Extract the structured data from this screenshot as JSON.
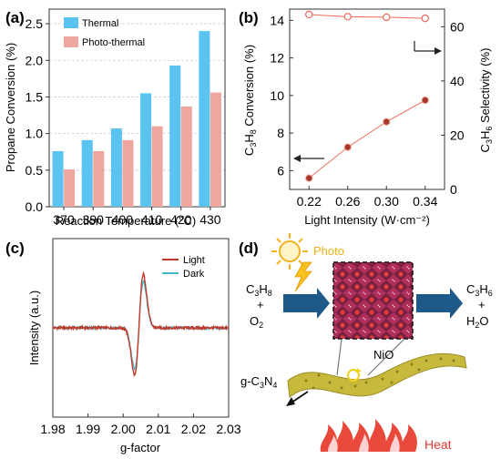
{
  "panels": {
    "a": {
      "tag": "(a)"
    },
    "b": {
      "tag": "(b)"
    },
    "c": {
      "tag": "(c)"
    },
    "d": {
      "tag": "(d)"
    }
  },
  "colors": {
    "thermal": "#5bc3f0",
    "photothermal": "#f0a6a0",
    "selectivity": "#e96a5c",
    "conversion": "#a8362c",
    "light": "#c0392b",
    "dark": "#3fb8c9",
    "arrow": "#1d5a8a"
  },
  "chart_data": [
    {
      "type": "bar",
      "panel": "a",
      "categories": [
        "370",
        "390",
        "400",
        "410",
        "420",
        "430"
      ],
      "series": [
        {
          "name": "Thermal",
          "values": [
            0.76,
            0.91,
            1.07,
            1.55,
            1.93,
            2.4
          ]
        },
        {
          "name": "Photo-thermal",
          "values": [
            0.51,
            0.76,
            0.91,
            1.1,
            1.37,
            1.56
          ]
        }
      ],
      "xlabel": "Reaction Temperature (°C)",
      "ylabel": "Propane Conversion (%)",
      "ylim": [
        0,
        2.7
      ],
      "yticks": [
        "0.0",
        "0.5",
        "1.0",
        "1.5",
        "2.0",
        "2.5"
      ],
      "legend": "top-left"
    },
    {
      "type": "line",
      "panel": "b",
      "x": [
        0.22,
        0.26,
        0.3,
        0.34
      ],
      "xticks": [
        "0.22",
        "0.26",
        "0.30",
        "0.34"
      ],
      "xlabel": "Light Intensity (W·cm⁻²)",
      "series": [
        {
          "values": [
            5.6,
            7.25,
            8.6,
            9.75
          ],
          "axis": "left"
        },
        {
          "values": [
            64.5,
            63.7,
            63.5,
            63.1
          ],
          "axis": "right"
        }
      ],
      "ylabel_left": "C3H8 Conversion (%)",
      "ylabel_right": "C3H6 Selectivity (%)",
      "ylim_left": [
        5,
        14.6
      ],
      "ylim_right": [
        0,
        66.5
      ],
      "yticks_left": [
        "6",
        "8",
        "10",
        "12",
        "14"
      ],
      "yticks_right": [
        "0",
        "20",
        "40",
        "60"
      ]
    },
    {
      "type": "line",
      "panel": "c",
      "xlabel": "g-factor",
      "ylabel": "Intensity (a.u.)",
      "xlim": [
        1.98,
        2.03
      ],
      "xticks": [
        "1.98",
        "1.99",
        "2.00",
        "2.01",
        "2.02",
        "2.03"
      ],
      "series": [
        {
          "name": "Light",
          "peak_max": 1.0,
          "peak_min": -0.88,
          "center": 2.0045
        },
        {
          "name": "Dark",
          "peak_max": 0.86,
          "peak_min": -0.76,
          "center": 2.0045
        }
      ],
      "legend": "top-right"
    }
  ],
  "schematic": {
    "photo": "Photo",
    "reactant1": "C3H8",
    "plus1": "+",
    "reactant2": "O2",
    "product1": "C3H6",
    "plus2": "+",
    "product2": "H2O",
    "catalyst": "NiO",
    "support": "g-C3N4",
    "heat": "Heat"
  }
}
